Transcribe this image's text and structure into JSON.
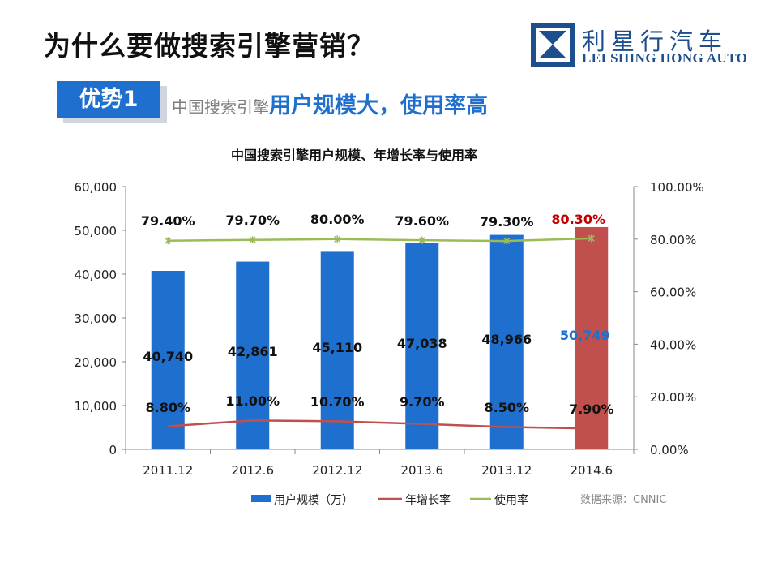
{
  "header": {
    "title": "为什么要做搜索引擎营销？",
    "logo_cn": "利星行汽车",
    "logo_en": "LEI SHING HONG AUTO"
  },
  "section": {
    "badge": "优势1",
    "subtitle_gray": "中国搜索引擎",
    "subtitle_blue": "用户规模大，使用率高"
  },
  "colors": {
    "bar": "#1f6fce",
    "bar_highlight": "#c0504d",
    "growth_line": "#c0504d",
    "usage_line": "#9bbb59",
    "value_label": "#1f6fce",
    "highlight_label": "#c00000"
  },
  "chart_data": {
    "type": "bar",
    "title": "中国搜索引擎用户规模、年增长率与使用率",
    "categories": [
      "2011.12",
      "2012.6",
      "2012.12",
      "2013.6",
      "2013.12",
      "2014.6"
    ],
    "y_left": {
      "min": 0,
      "max": 60000,
      "ticks": [
        "0",
        "10,000",
        "20,000",
        "30,000",
        "40,000",
        "50,000",
        "60,000"
      ],
      "tick_values": [
        0,
        10000,
        20000,
        30000,
        40000,
        50000,
        60000
      ]
    },
    "y_right": {
      "min": 0,
      "max": 100,
      "ticks": [
        "0.00%",
        "20.00%",
        "40.00%",
        "60.00%",
        "80.00%",
        "100.00%"
      ],
      "tick_values": [
        0,
        20,
        40,
        60,
        80,
        100
      ]
    },
    "series": [
      {
        "name": "用户规模（万）",
        "kind": "bar",
        "axis": "left",
        "values": [
          40740,
          42861,
          45110,
          47038,
          48966,
          50749
        ],
        "labels": [
          "40,740",
          "42,861",
          "45,110",
          "47,038",
          "48,966",
          "50,749"
        ],
        "highlight_index": 5
      },
      {
        "name": "年增长率",
        "kind": "line",
        "axis": "right",
        "values": [
          8.8,
          11.0,
          10.7,
          9.7,
          8.5,
          7.9
        ],
        "labels": [
          "8.80%",
          "11.00%",
          "10.70%",
          "9.70%",
          "8.50%",
          "7.90%"
        ]
      },
      {
        "name": "使用率",
        "kind": "line",
        "axis": "right",
        "values": [
          79.4,
          79.7,
          80.0,
          79.6,
          79.3,
          80.3
        ],
        "labels": [
          "79.40%",
          "79.70%",
          "80.00%",
          "79.60%",
          "79.30%",
          "80.30%"
        ],
        "highlight_index": 5
      }
    ],
    "legend": [
      "用户规模（万）",
      "年增长率",
      "使用率"
    ],
    "source": "数据来源：CNNIC"
  }
}
